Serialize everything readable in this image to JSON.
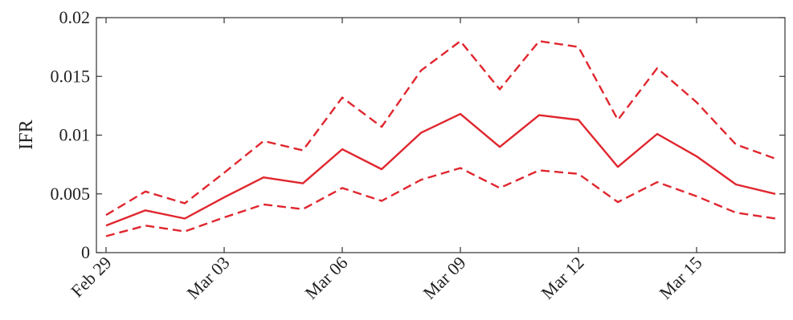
{
  "chart_data": {
    "type": "line",
    "ylabel": "IFR",
    "ylim": [
      0,
      0.02
    ],
    "yticks": [
      "0",
      "0.005",
      "0.01",
      "0.015",
      "0.02"
    ],
    "x": [
      "Feb 29",
      "Mar 01",
      "Mar 02",
      "Mar 03",
      "Mar 04",
      "Mar 05",
      "Mar 06",
      "Mar 07",
      "Mar 08",
      "Mar 09",
      "Mar 10",
      "Mar 11",
      "Mar 12",
      "Mar 13",
      "Mar 14",
      "Mar 15",
      "Mar 16",
      "Mar 17"
    ],
    "xtick_labels": [
      "Feb 29",
      "Mar 03",
      "Mar 06",
      "Mar 09",
      "Mar 12",
      "Mar 15"
    ],
    "color": "#e0262e",
    "series": [
      {
        "style": "dashed",
        "values": [
          0.0032,
          0.0052,
          0.0042,
          0.0068,
          0.0095,
          0.0087,
          0.0132,
          0.0107,
          0.0155,
          0.018,
          0.0139,
          0.018,
          0.0175,
          0.0113,
          0.0157,
          0.0128,
          0.0092,
          0.008
        ]
      },
      {
        "style": "solid",
        "values": [
          0.0023,
          0.0036,
          0.0029,
          0.0047,
          0.0064,
          0.0059,
          0.0088,
          0.0071,
          0.0102,
          0.0118,
          0.009,
          0.0117,
          0.0113,
          0.0073,
          0.0101,
          0.0082,
          0.0058,
          0.005
        ]
      },
      {
        "style": "dashed",
        "values": [
          0.0014,
          0.0023,
          0.0018,
          0.003,
          0.0041,
          0.0037,
          0.0055,
          0.0044,
          0.0062,
          0.0072,
          0.0055,
          0.007,
          0.0067,
          0.0043,
          0.006,
          0.0048,
          0.0034,
          0.0029
        ]
      }
    ]
  }
}
